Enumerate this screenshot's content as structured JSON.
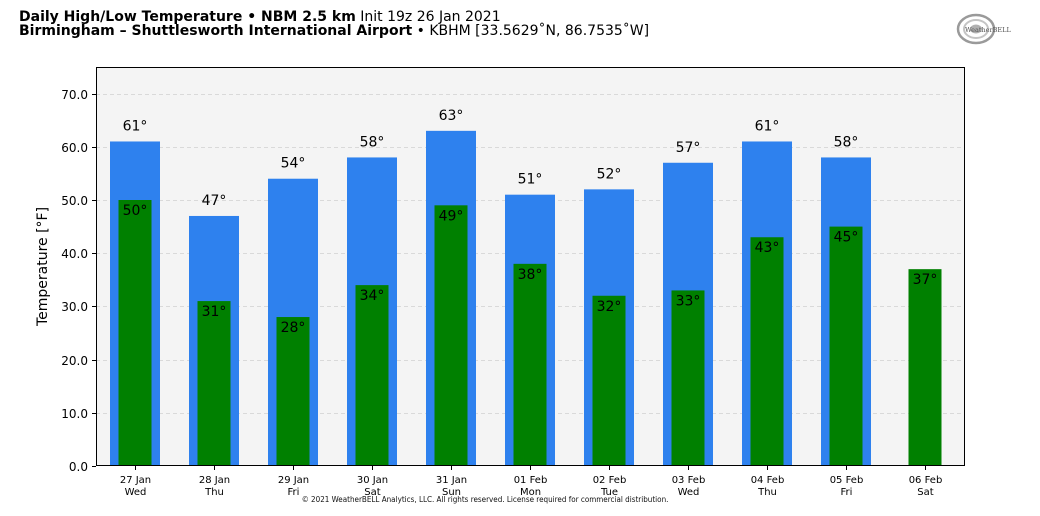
{
  "header": {
    "title_bold": "Daily High/Low Temperature • NBM 2.5 km",
    "title_init": "Init 19z 26 Jan 2021",
    "location_bold": "Birmingham – Shuttlesworth International Airport",
    "location_detail": "• KBHM [33.5629˚N, 86.7535˚W]"
  },
  "logo": {
    "text": "WeatherBELL",
    "icon": "weatherbell-swirl-logo"
  },
  "copyright": "© 2021 WeatherBELL Analytics, LLC. All rights reserved. License required for commercial distribution.",
  "colors": {
    "high": "#2e81ee",
    "low": "#008000",
    "plot_bg": "#f4f4f4",
    "grid": "#cfcfcf"
  },
  "chart_data": {
    "type": "bar",
    "title": "Daily High/Low Temperature • NBM 2.5 km",
    "ylabel": "Temperature [°F]",
    "xlabel": "",
    "ylim": [
      0,
      75
    ],
    "yticks": [
      "0.0",
      "10.0",
      "20.0",
      "30.0",
      "40.0",
      "50.0",
      "60.0",
      "70.0"
    ],
    "ytick_values": [
      0,
      10,
      20,
      30,
      40,
      50,
      60,
      70
    ],
    "grid": true,
    "categories": [
      {
        "date": "27 Jan",
        "day": "Wed"
      },
      {
        "date": "28 Jan",
        "day": "Thu"
      },
      {
        "date": "29 Jan",
        "day": "Fri"
      },
      {
        "date": "30 Jan",
        "day": "Sat"
      },
      {
        "date": "31 Jan",
        "day": "Sun"
      },
      {
        "date": "01 Feb",
        "day": "Mon"
      },
      {
        "date": "02 Feb",
        "day": "Tue"
      },
      {
        "date": "03 Feb",
        "day": "Wed"
      },
      {
        "date": "04 Feb",
        "day": "Thu"
      },
      {
        "date": "05 Feb",
        "day": "Fri"
      },
      {
        "date": "06 Feb",
        "day": "Sat"
      }
    ],
    "series": [
      {
        "key": "high",
        "values": [
          61,
          47,
          54,
          58,
          63,
          51,
          52,
          57,
          61,
          58,
          null
        ],
        "labels": [
          "61°",
          "47°",
          "54°",
          "58°",
          "63°",
          "51°",
          "52°",
          "57°",
          "61°",
          "58°",
          null
        ]
      },
      {
        "key": "low",
        "values": [
          50,
          31,
          28,
          34,
          49,
          38,
          32,
          33,
          43,
          45,
          37
        ],
        "labels": [
          "50°",
          "31°",
          "28°",
          "34°",
          "49°",
          "38°",
          "32°",
          "33°",
          "43°",
          "45°",
          "37°"
        ]
      }
    ]
  }
}
